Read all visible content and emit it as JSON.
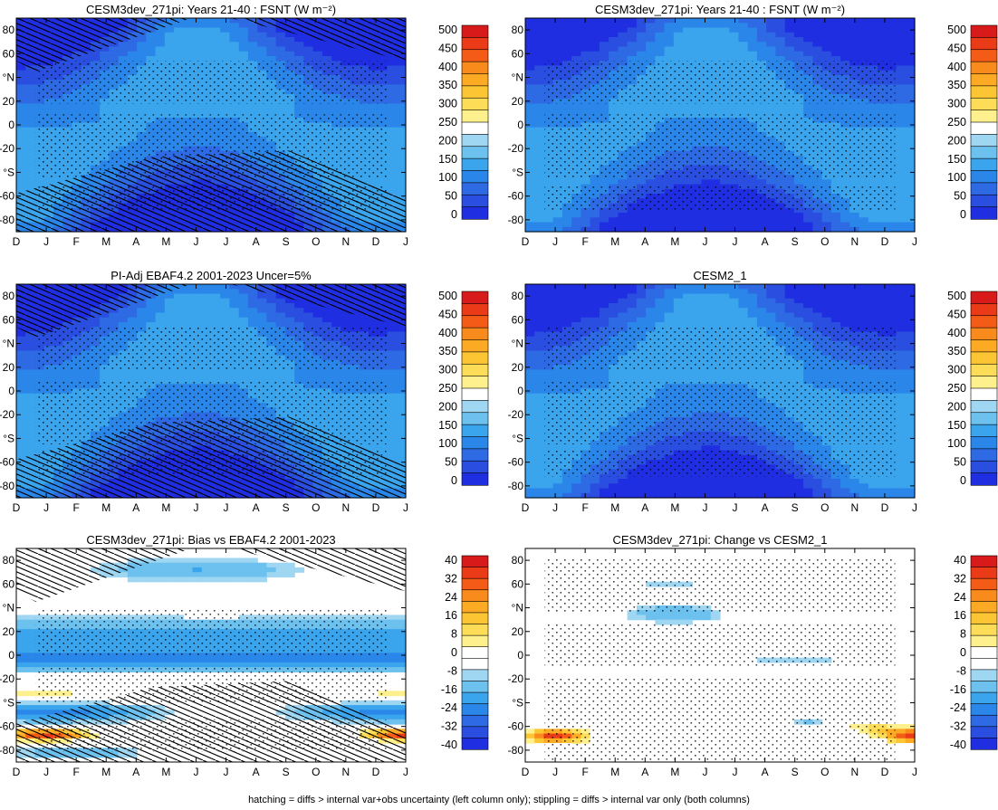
{
  "figure": {
    "caption": "hatching = diffs > internal var+obs uncertainty (left column only); stippling = diffs > internal var only (both columns)"
  },
  "x_ticks": [
    "D",
    "J",
    "F",
    "M",
    "A",
    "M",
    "J",
    "J",
    "A",
    "S",
    "O",
    "N",
    "D",
    "J"
  ],
  "y_ticks": [
    "80",
    "60",
    "°N",
    "20",
    "0",
    "-20",
    "°S",
    "-60",
    "-80"
  ],
  "colorbar_fsnt": {
    "labels": [
      "500",
      "450",
      "400",
      "350",
      "300",
      "250",
      "200",
      "150",
      "100",
      "50",
      "0"
    ],
    "colors": [
      "#d81a1a",
      "#ea3a17",
      "#f45b16",
      "#f98a1c",
      "#fcaa23",
      "#fcc533",
      "#fddd57",
      "#fef08c",
      "#ffffff",
      "#9fd6f2",
      "#6cc1ee",
      "#3aa4ec",
      "#2a86e8",
      "#2d6ae4",
      "#2a4fe0",
      "#1f2ee0"
    ]
  },
  "colorbar_diff": {
    "labels": [
      "40",
      "32",
      "24",
      "16",
      "8",
      "0",
      "-8",
      "-16",
      "-24",
      "-32",
      "-40"
    ],
    "colors": [
      "#d81a1a",
      "#ea3a17",
      "#f45b16",
      "#f98a1c",
      "#fcaa23",
      "#fcc533",
      "#fddd57",
      "#fef08c",
      "#ffffff",
      "#ffffff",
      "#9fd6f2",
      "#6cc1ee",
      "#3aa4ec",
      "#2a86e8",
      "#2d6ae4",
      "#2a4fe0",
      "#1f2ee0"
    ]
  },
  "chart_data": [
    {
      "type": "heatmap",
      "title": "CESM3dev_271pi: Years 21-40 : FSNT (W m⁻²)",
      "x": [
        "D",
        "J",
        "F",
        "M",
        "A",
        "M",
        "J",
        "J",
        "A",
        "S",
        "O",
        "N",
        "D",
        "J"
      ],
      "y_ticks": [
        "80",
        "60",
        "°N",
        "20",
        "0",
        "-20",
        "°S",
        "-60",
        "-80"
      ],
      "y_range": [
        -90,
        90
      ],
      "colorbar": "colorbar_fsnt",
      "field": "fsnt",
      "hatching": true,
      "stippling": true
    },
    {
      "type": "heatmap",
      "title": "CESM3dev_271pi: Years 21-40 : FSNT (W m⁻²)",
      "x": [
        "D",
        "J",
        "F",
        "M",
        "A",
        "M",
        "J",
        "J",
        "A",
        "S",
        "O",
        "N",
        "D",
        "J"
      ],
      "y_ticks": [
        "80",
        "60",
        "°N",
        "20",
        "0",
        "-20",
        "°S",
        "-60",
        "-80"
      ],
      "y_range": [
        -90,
        90
      ],
      "colorbar": "colorbar_fsnt",
      "field": "fsnt",
      "hatching": false,
      "stippling": true
    },
    {
      "type": "heatmap",
      "title": "PI-Adj EBAF4.2 2001-2023 Uncer=5%",
      "x": [
        "D",
        "J",
        "F",
        "M",
        "A",
        "M",
        "J",
        "J",
        "A",
        "S",
        "O",
        "N",
        "D",
        "J"
      ],
      "y_ticks": [
        "80",
        "60",
        "°N",
        "20",
        "0",
        "-20",
        "°S",
        "-60",
        "-80"
      ],
      "y_range": [
        -90,
        90
      ],
      "colorbar": "colorbar_fsnt",
      "field": "fsnt",
      "hatching": true,
      "stippling": true
    },
    {
      "type": "heatmap",
      "title": "CESM2_1",
      "x": [
        "D",
        "J",
        "F",
        "M",
        "A",
        "M",
        "J",
        "J",
        "A",
        "S",
        "O",
        "N",
        "D",
        "J"
      ],
      "y_ticks": [
        "80",
        "60",
        "°N",
        "20",
        "0",
        "-20",
        "°S",
        "-60",
        "-80"
      ],
      "y_range": [
        -90,
        90
      ],
      "colorbar": "colorbar_fsnt",
      "field": "fsnt",
      "hatching": false,
      "stippling": true
    },
    {
      "type": "heatmap",
      "title": "CESM3dev_271pi: Bias vs EBAF4.2 2001-2023",
      "x": [
        "D",
        "J",
        "F",
        "M",
        "A",
        "M",
        "J",
        "J",
        "A",
        "S",
        "O",
        "N",
        "D",
        "J"
      ],
      "y_ticks": [
        "80",
        "60",
        "°N",
        "20",
        "0",
        "-20",
        "°S",
        "-60",
        "-80"
      ],
      "y_range": [
        -90,
        90
      ],
      "colorbar": "colorbar_diff",
      "field": "bias",
      "hatching": true,
      "stippling": true
    },
    {
      "type": "heatmap",
      "title": "CESM3dev_271pi: Change vs CESM2_1",
      "x": [
        "D",
        "J",
        "F",
        "M",
        "A",
        "M",
        "J",
        "J",
        "A",
        "S",
        "O",
        "N",
        "D",
        "J"
      ],
      "y_ticks": [
        "80",
        "60",
        "°N",
        "20",
        "0",
        "-20",
        "°S",
        "-60",
        "-80"
      ],
      "y_range": [
        -90,
        90
      ],
      "colorbar": "colorbar_diff",
      "field": "change",
      "hatching": false,
      "stippling": true
    }
  ]
}
